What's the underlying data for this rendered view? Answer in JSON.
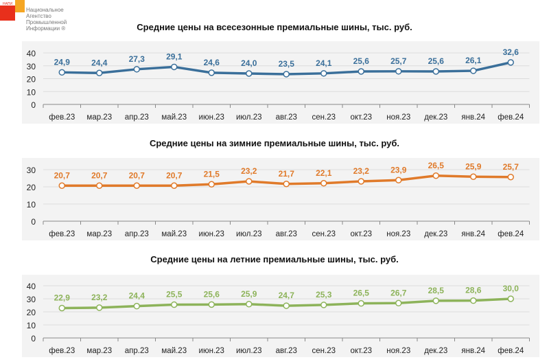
{
  "logo": {
    "abbr": "НАПИ",
    "lines": [
      "Национальное",
      "Агентство",
      "Промышленной",
      "Информации ®"
    ]
  },
  "chart_data": [
    {
      "type": "line",
      "title": "Средние цены на всесезонные премиальные шины, тыс. руб.",
      "color": "#3a6f9a",
      "ylim": [
        0,
        40
      ],
      "yticks": [
        0,
        10,
        20,
        30,
        40
      ],
      "grid": true,
      "categories": [
        "фев.23",
        "мар.23",
        "апр.23",
        "май.23",
        "июн.23",
        "июл.23",
        "авг.23",
        "сен.23",
        "окт.23",
        "ноя.23",
        "дек.23",
        "янв.24",
        "фев.24"
      ],
      "values": [
        24.9,
        24.4,
        27.3,
        29.1,
        24.6,
        24.0,
        23.5,
        24.1,
        25.6,
        25.7,
        25.6,
        26.1,
        32.6
      ]
    },
    {
      "type": "line",
      "title": "Средние цены на зимние премиальные шины, тыс. руб.",
      "color": "#e07a2a",
      "ylim": [
        0,
        30
      ],
      "yticks": [
        0,
        10,
        20,
        30
      ],
      "grid": true,
      "categories": [
        "фев.23",
        "мар.23",
        "апр.23",
        "май.23",
        "июн.23",
        "июл.23",
        "авг.23",
        "сен.23",
        "окт.23",
        "ноя.23",
        "дек.23",
        "янв.24",
        "фев.24"
      ],
      "values": [
        20.7,
        20.7,
        20.7,
        20.7,
        21.5,
        23.2,
        21.7,
        22.1,
        23.2,
        23.9,
        26.5,
        25.9,
        25.7
      ]
    },
    {
      "type": "line",
      "title": "Средние цены на летние премиальные шины, тыс. руб.",
      "color": "#8db35a",
      "ylim": [
        0,
        40
      ],
      "yticks": [
        0,
        10,
        20,
        30,
        40
      ],
      "grid": true,
      "categories": [
        "фев.23",
        "мар.23",
        "апр.23",
        "май.23",
        "июн.23",
        "июл.23",
        "авг.23",
        "сен.23",
        "окт.23",
        "ноя.23",
        "дек.23",
        "янв.24",
        "фев.24"
      ],
      "values": [
        22.9,
        23.2,
        24.4,
        25.5,
        25.6,
        25.9,
        24.7,
        25.3,
        26.5,
        26.7,
        28.5,
        28.6,
        30.0
      ]
    }
  ]
}
